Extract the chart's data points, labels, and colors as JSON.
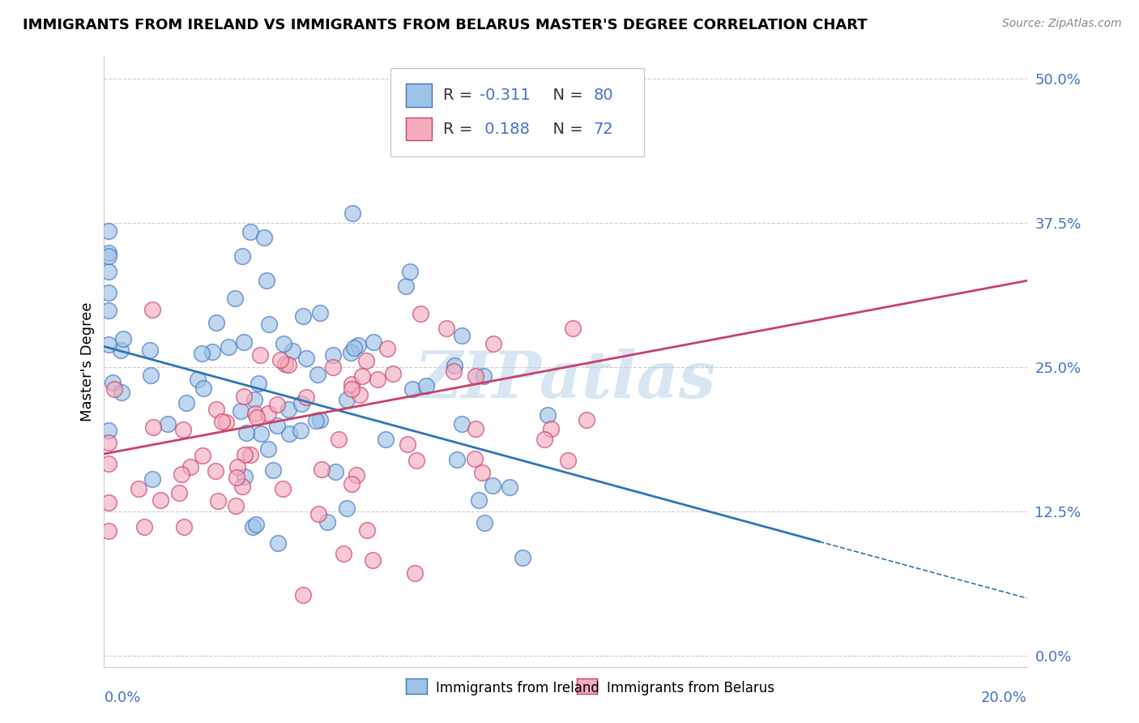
{
  "title": "IMMIGRANTS FROM IRELAND VS IMMIGRANTS FROM BELARUS MASTER'S DEGREE CORRELATION CHART",
  "source": "Source: ZipAtlas.com",
  "ylabel": "Master's Degree",
  "ytick_labels": [
    "0.0%",
    "12.5%",
    "25.0%",
    "37.5%",
    "50.0%"
  ],
  "ytick_values": [
    0.0,
    0.125,
    0.25,
    0.375,
    0.5
  ],
  "xtick_labels": [
    "0.0%",
    "20.0%"
  ],
  "xtick_values": [
    0.0,
    0.2
  ],
  "xrange": [
    0.0,
    0.2
  ],
  "yrange": [
    -0.01,
    0.52
  ],
  "legend_label1": "Immigrants from Ireland",
  "legend_label2": "Immigrants from Belarus",
  "R1": -0.311,
  "N1": 80,
  "R2": 0.188,
  "N2": 72,
  "color_ireland": "#9DC3E6",
  "color_ireland_edge": "#4472C4",
  "color_belarus": "#F4ACBE",
  "color_belarus_edge": "#C9406A",
  "color_ireland_line": "#2E75B6",
  "color_belarus_line": "#C9406A",
  "color_tick": "#4472C4",
  "watermark": "ZIPatlas",
  "watermark_color": "#B8D0E8",
  "grid_color": "#CCCCCC",
  "title_fontsize": 13,
  "tick_fontsize": 13,
  "legend_fontsize": 13,
  "ylabel_fontsize": 13,
  "source_fontsize": 10,
  "scatter_size": 200,
  "scatter_alpha": 0.65,
  "scatter_lw": 1.2,
  "line_lw": 2.0
}
